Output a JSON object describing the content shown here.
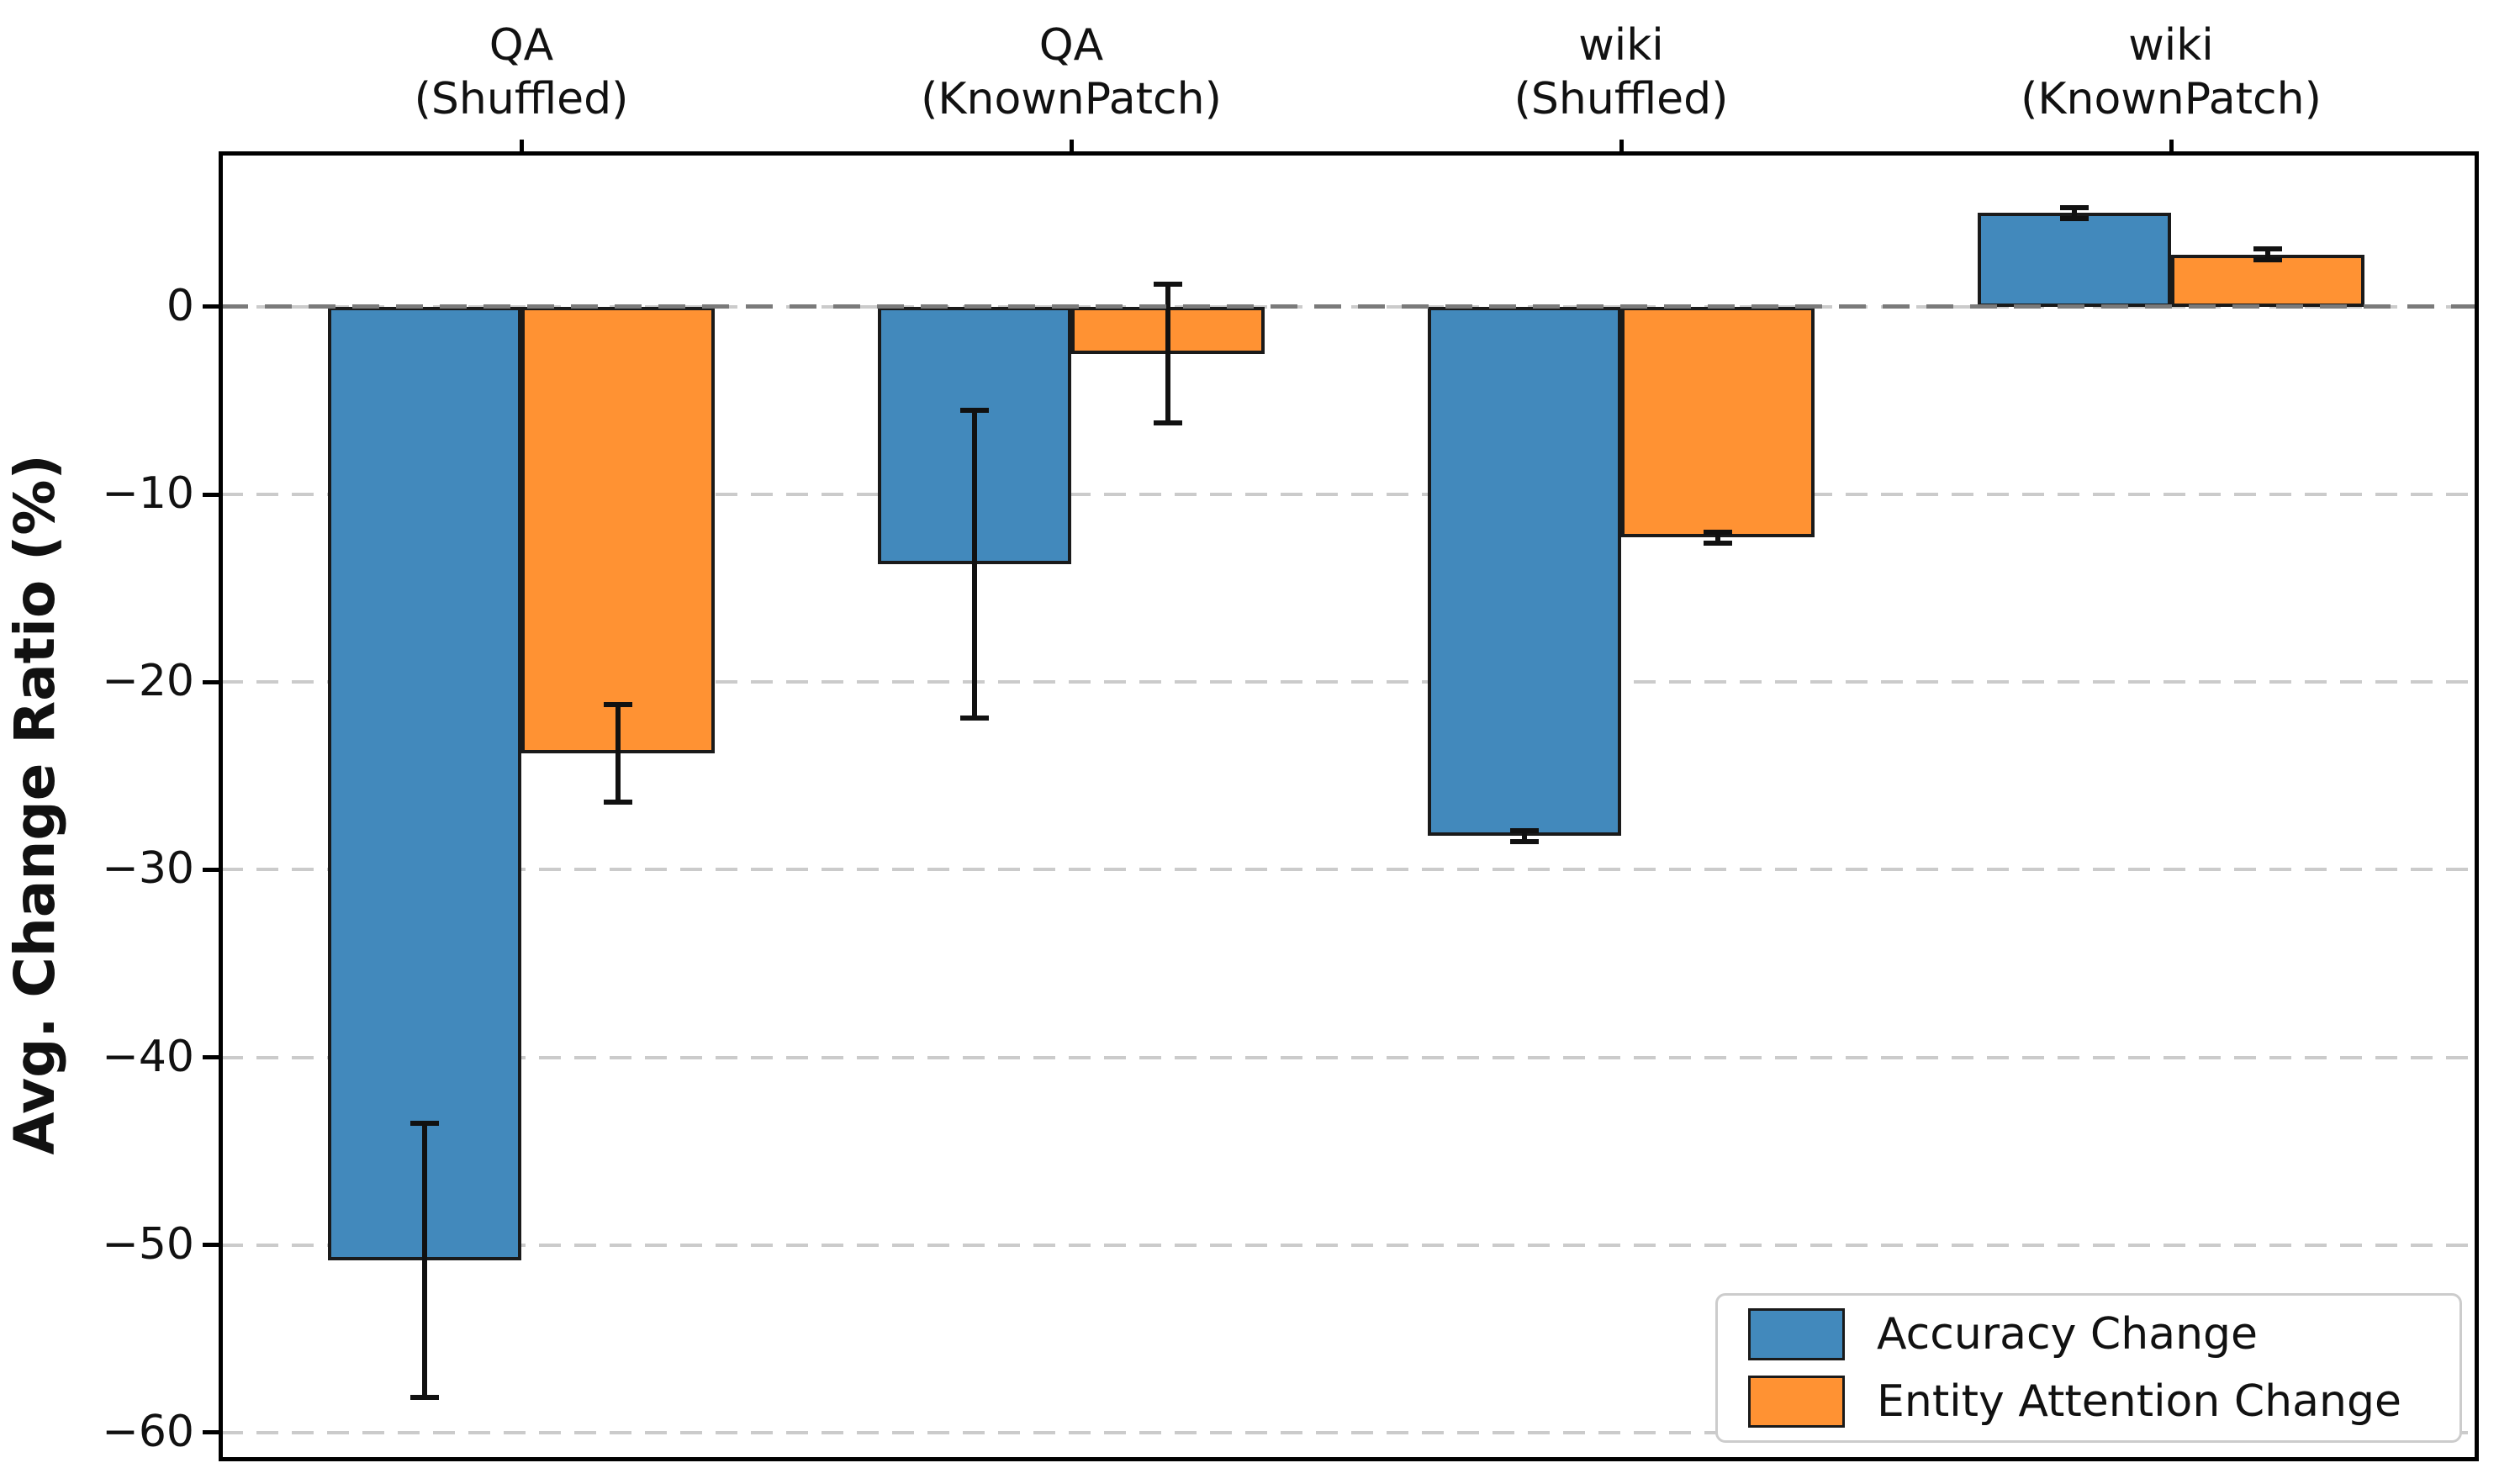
{
  "chart_data": {
    "type": "bar",
    "title": "",
    "ylabel": "Avg. Change Ratio (%)",
    "xlabel": "",
    "categories": [
      [
        "QA",
        "(Shuffled)"
      ],
      [
        "QA",
        "(KnownPatch)"
      ],
      [
        "wiki",
        "(Shuffled)"
      ],
      [
        "wiki",
        "(KnownPatch)"
      ]
    ],
    "series": [
      {
        "name": "Accuracy Change",
        "color": "#4289BC",
        "values": [
          -50.8,
          -13.7,
          -28.2,
          5.0
        ],
        "errors": [
          7.3,
          8.2,
          0.3,
          0.3
        ]
      },
      {
        "name": "Entity Attention Change",
        "color": "#FF9233",
        "values": [
          -23.8,
          -2.5,
          -12.3,
          2.8
        ],
        "errors": [
          2.6,
          3.7,
          0.3,
          0.3
        ]
      }
    ],
    "yticks": [
      0,
      -10,
      -20,
      -30,
      -40,
      -50,
      -60
    ],
    "ytick_labels": [
      "0",
      "−10",
      "−20",
      "−30",
      "−40",
      "−50",
      "−60"
    ],
    "ylim": [
      -61.3,
      8.2
    ],
    "grid": "horizontal dashed",
    "zero_line": true,
    "legend_position": "lower right",
    "category_labels_position": "top",
    "colors": {
      "bar_edge": "#1a1a1a",
      "gridline": "#cbcbcb",
      "zero_line": "#7a7a7a",
      "spine": "#000000",
      "text": "#111111",
      "legend_border": "#cccccc"
    }
  }
}
